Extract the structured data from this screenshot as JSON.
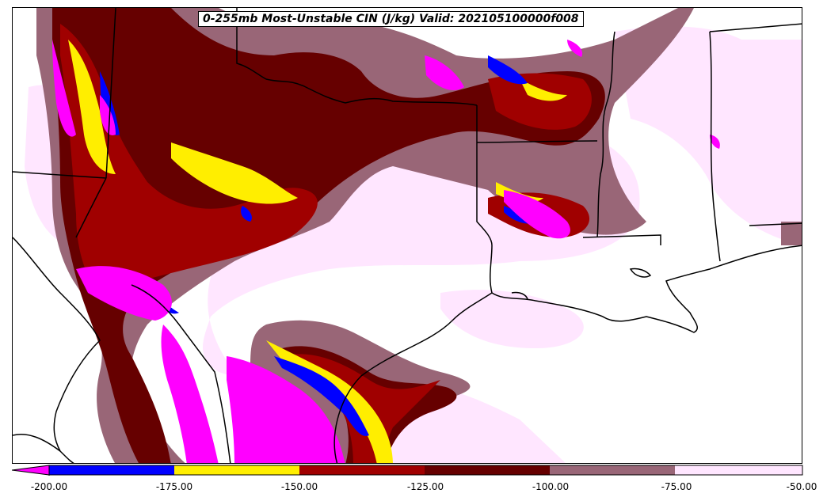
{
  "title": "0-255mb Most-Unstable CIN (J/kg) Valid: 202105100000f008",
  "colorbar": {
    "ticks": [
      "-200.00",
      "-175.00",
      "-150.00",
      "-125.00",
      "-100.00",
      "-75.00",
      "-50.00"
    ],
    "bins": [
      {
        "range": "<-200",
        "color": "#ff00ff"
      },
      {
        "range": "-200 to -175",
        "color": "#0000ff"
      },
      {
        "range": "-175 to -150",
        "color": "#ffee00"
      },
      {
        "range": "-150 to -125",
        "color": "#a00000"
      },
      {
        "range": "-125 to -100",
        "color": "#660000"
      },
      {
        "range": "-100 to -75",
        "color": "#996677"
      },
      {
        "range": "-75 to -50",
        "color": "#ffe6ff"
      }
    ]
  }
}
